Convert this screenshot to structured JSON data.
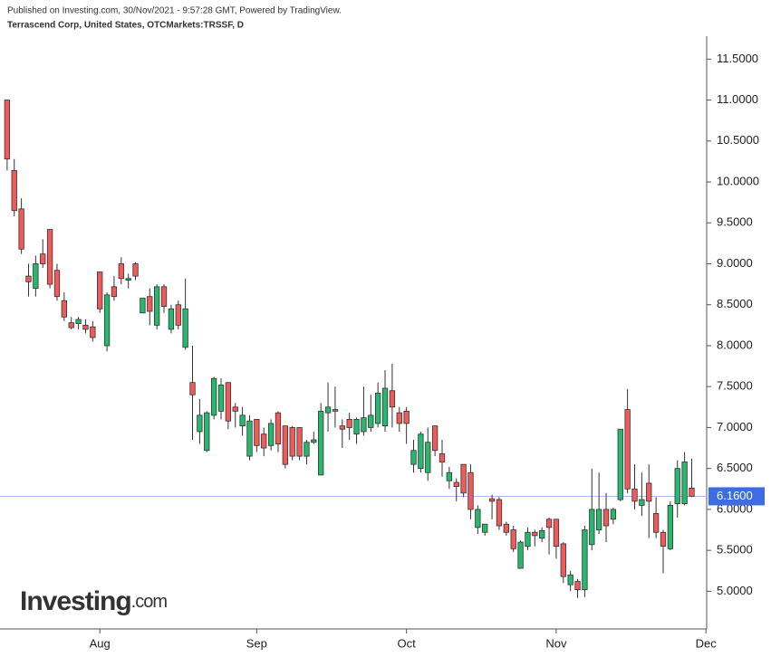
{
  "chart_data": {
    "type": "candlestick",
    "published": "Published on Investing.com, 30/Nov/2021 - 9:57:28 GMT, Powered by TradingView.",
    "title": "Terrascend Corp, United States, OTCMarkets:TRSSF, D",
    "logo": {
      "main": "Investing",
      "suffix": ".com"
    },
    "up_color": "#27b86e",
    "down_color": "#ef5b5b",
    "open": [
      11.0,
      10.14,
      9.67,
      8.85,
      8.7,
      9.12,
      9.42,
      8.92,
      8.55,
      8.28,
      8.27,
      8.25,
      8.23,
      8.9,
      8.0,
      8.72,
      9.0,
      8.8,
      9.0,
      8.4,
      8.6,
      8.25,
      8.72,
      8.2,
      8.5,
      7.98,
      7.55,
      6.95,
      6.72,
      7.15,
      7.2,
      7.55,
      7.25,
      7.02,
      6.65,
      7.1,
      6.92,
      6.78,
      7.18,
      7.02,
      7.0,
      7.0,
      6.65,
      6.82,
      6.42,
      7.18,
      7.2,
      7.02,
      7.1,
      6.92,
      6.95,
      7.0,
      7.05,
      7.02,
      7.45,
      7.18,
      7.2,
      6.55,
      6.5,
      6.45,
      7.02,
      6.68,
      6.35,
      6.33,
      6.55,
      6.45,
      5.78,
      5.72,
      6.13,
      6.12,
      5.82,
      5.75,
      5.28,
      5.55,
      5.72,
      5.65,
      5.88,
      5.88,
      5.58,
      5.08,
      5.12,
      5.02,
      5.57,
      5.75,
      6.0,
      5.88,
      6.12,
      7.22,
      6.25,
      6.05,
      6.32,
      5.95,
      5.72,
      5.52,
      6.07,
      6.07,
      6.26
    ],
    "high": [
      11.0,
      10.28,
      9.8,
      9.0,
      9.1,
      9.3,
      9.42,
      9.0,
      8.65,
      8.35,
      8.35,
      8.32,
      8.3,
      8.9,
      8.65,
      8.85,
      9.08,
      8.88,
      9.02,
      8.55,
      8.7,
      8.75,
      8.75,
      8.5,
      8.55,
      8.82,
      8.0,
      7.35,
      7.2,
      7.62,
      7.6,
      7.55,
      7.3,
      7.25,
      7.15,
      7.1,
      7.0,
      7.1,
      7.2,
      7.02,
      7.02,
      7.0,
      6.85,
      6.95,
      7.3,
      7.55,
      7.5,
      7.1,
      7.18,
      7.12,
      7.5,
      7.4,
      7.55,
      7.7,
      7.78,
      7.25,
      7.25,
      6.85,
      6.95,
      7.0,
      7.02,
      6.85,
      6.52,
      6.38,
      6.55,
      6.55,
      6.05,
      5.8,
      6.18,
      6.15,
      5.85,
      5.8,
      5.62,
      5.78,
      5.75,
      5.78,
      5.9,
      5.88,
      5.6,
      5.25,
      5.15,
      5.8,
      6.5,
      6.45,
      6.2,
      6.02,
      6.98,
      7.47,
      6.55,
      6.45,
      6.55,
      6.15,
      5.75,
      6.1,
      6.6,
      6.7,
      6.62
    ],
    "low": [
      10.14,
      9.58,
      9.12,
      8.6,
      8.6,
      8.95,
      8.7,
      8.55,
      8.3,
      8.2,
      8.2,
      8.15,
      8.05,
      8.4,
      7.93,
      8.55,
      8.75,
      8.7,
      8.8,
      8.4,
      8.25,
      8.2,
      8.4,
      8.15,
      8.2,
      7.95,
      6.85,
      6.8,
      6.7,
      7.1,
      7.1,
      6.98,
      7.0,
      6.9,
      6.6,
      6.7,
      6.65,
      6.72,
      6.7,
      6.5,
      6.6,
      6.6,
      6.55,
      6.8,
      6.42,
      6.95,
      7.0,
      6.75,
      6.85,
      6.8,
      6.9,
      6.95,
      7.0,
      6.95,
      7.0,
      6.95,
      6.8,
      6.45,
      6.45,
      6.35,
      6.65,
      6.4,
      6.25,
      6.1,
      6.15,
      5.88,
      5.7,
      5.68,
      5.88,
      5.75,
      5.68,
      5.48,
      5.28,
      5.5,
      5.55,
      5.6,
      5.45,
      5.4,
      5.1,
      5.0,
      4.92,
      4.93,
      5.5,
      5.7,
      5.6,
      5.82,
      6.1,
      6.2,
      6.0,
      5.92,
      5.65,
      5.65,
      5.22,
      5.5,
      5.9,
      6.05,
      6.15
    ],
    "close": [
      10.28,
      9.65,
      9.18,
      8.78,
      9.0,
      9.0,
      8.75,
      8.6,
      8.35,
      8.22,
      8.32,
      8.2,
      8.1,
      8.45,
      8.62,
      8.6,
      8.82,
      8.82,
      8.85,
      8.58,
      8.42,
      8.72,
      8.48,
      8.45,
      8.25,
      8.45,
      7.4,
      7.15,
      7.18,
      7.6,
      7.52,
      7.08,
      7.2,
      7.15,
      7.08,
      6.78,
      6.75,
      7.05,
      6.8,
      6.55,
      6.65,
      6.65,
      6.82,
      6.85,
      7.2,
      7.25,
      7.22,
      6.98,
      7.0,
      7.1,
      7.12,
      7.15,
      7.42,
      7.48,
      7.25,
      7.05,
      7.05,
      6.72,
      6.92,
      6.82,
      6.72,
      6.58,
      6.45,
      6.28,
      6.2,
      6.0,
      6.0,
      5.82,
      6.1,
      5.8,
      5.72,
      5.52,
      5.6,
      5.72,
      5.68,
      5.74,
      5.78,
      5.55,
      5.18,
      5.2,
      5.02,
      5.75,
      6.0,
      6.0,
      5.8,
      6.0,
      6.98,
      6.25,
      6.1,
      6.12,
      6.1,
      5.72,
      5.55,
      6.05,
      6.5,
      6.58,
      6.16
    ],
    "last_price": {
      "value": 6.16,
      "label": "6.1600"
    },
    "xlim": [
      -1,
      98.1
    ],
    "xticks": [
      {
        "value": 13,
        "label": "Aug"
      },
      {
        "value": 35,
        "label": "Sep"
      },
      {
        "value": 56,
        "label": "Oct"
      },
      {
        "value": 77,
        "label": "Nov"
      },
      {
        "value": 98,
        "label": "Dec"
      }
    ],
    "ylim": [
      4.54,
      11.78
    ],
    "yticks": [
      {
        "value": 5.0,
        "label": "5.0000"
      },
      {
        "value": 5.5,
        "label": "5.5000"
      },
      {
        "value": 6.0,
        "label": "6.0000"
      },
      {
        "value": 6.5,
        "label": "6.5000"
      },
      {
        "value": 7.0,
        "label": "7.0000"
      },
      {
        "value": 7.5,
        "label": "7.5000"
      },
      {
        "value": 8.0,
        "label": "8.0000"
      },
      {
        "value": 8.5,
        "label": "8.5000"
      },
      {
        "value": 9.0,
        "label": "9.0000"
      },
      {
        "value": 9.5,
        "label": "9.5000"
      },
      {
        "value": 10.0,
        "label": "10.0000"
      },
      {
        "value": 10.5,
        "label": "10.5000"
      },
      {
        "value": 11.0,
        "label": "11.0000"
      },
      {
        "value": 11.5,
        "label": "11.5000"
      }
    ]
  }
}
